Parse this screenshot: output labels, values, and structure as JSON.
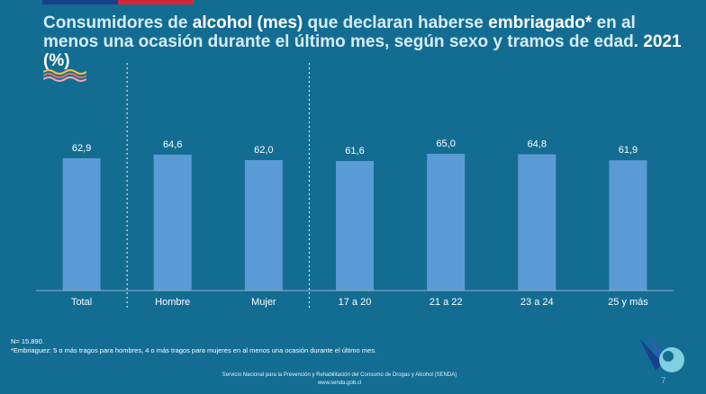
{
  "title": {
    "part1": "Consumidores de ",
    "hl1": "alcohol (mes)",
    "part2": " que declaran haberse ",
    "hl2": "embriagado*",
    "part3": " en al menos una ocasión durante el último mes, según sexo y tramos de edad.",
    "year": "2021 (%)"
  },
  "chart_data": {
    "type": "bar",
    "categories": [
      "Total",
      "Hombre",
      "Mujer",
      "17 a 20",
      "21 a 22",
      "23 a 24",
      "25 y más"
    ],
    "values": [
      62.9,
      64.6,
      62.0,
      61.6,
      65.0,
      64.8,
      61.9
    ],
    "value_labels": [
      "62,9",
      "64,6",
      "62,0",
      "61,6",
      "65,0",
      "64,8",
      "61,9"
    ],
    "title": "Consumidores de alcohol (mes) que declaran haberse embriagado* en al menos una ocasión durante el último mes, según sexo y tramos de edad. 2021 (%)",
    "xlabel": "",
    "ylabel": "",
    "ylim": [
      0,
      100
    ],
    "grid": false,
    "group_separators_after": [
      "Total",
      "Mujer"
    ],
    "bar_color": "#5b9bd5"
  },
  "footnote": {
    "n": "N= 15.890.",
    "definition": "*Embriaguez: 5 o más tragos para hombres, 4 o más tragos para mujeres en al menos una ocasión durante el último mes."
  },
  "footer": {
    "org": "Servicio Nacional para la Prevención y Rehabilitación del Consumo de Drogas y Alcohol (SENDA)",
    "url": "www.senda.gob.cl"
  },
  "page_number": "7",
  "icons": [
    "wave-decoration-icon",
    "senda-logo-icon"
  ]
}
